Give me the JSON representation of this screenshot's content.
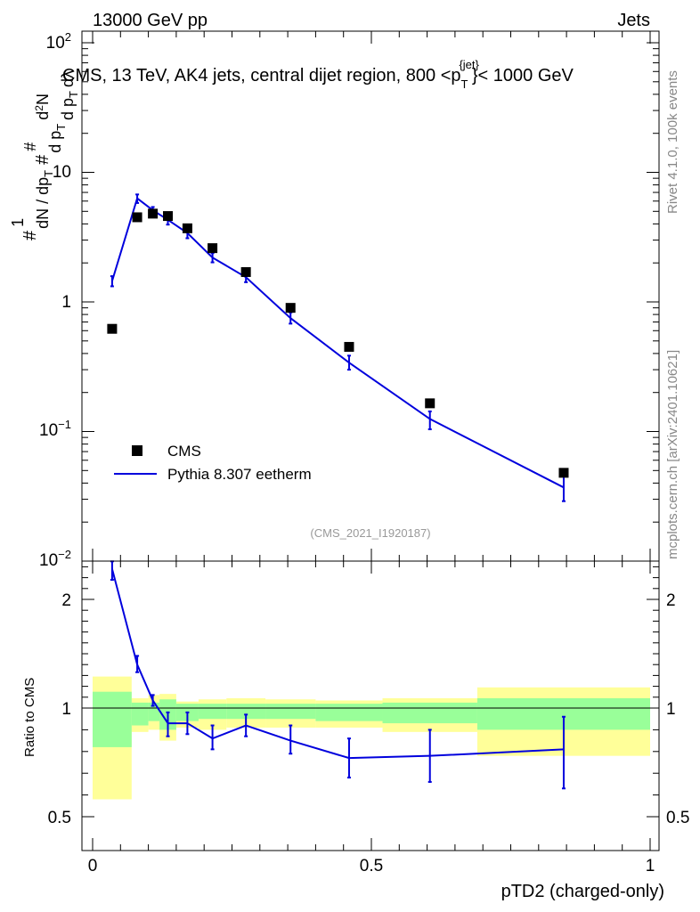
{
  "header": {
    "left": "13000 GeV pp",
    "right": "Jets"
  },
  "side_labels": {
    "rivet": "Rivet 4.1.0,  100k events",
    "source": "mcplots.cern.ch [arXiv:2401.10621]"
  },
  "colors": {
    "mc": "#0000dd",
    "band_inner": "#99ff99",
    "band_outer": "#ffff99",
    "data": "#000000"
  },
  "chart_data": [
    {
      "type": "scatter",
      "title": "CMS, 13 TeV, AK4 jets, central dijet region, 800 <p",
      "title_sup": "{jet}",
      "title_sub": "T",
      "title_end": "}< 1000 GeV",
      "analysis_id": "(CMS_2021_I1920187)",
      "ylabel": "1/dN/dpT # d2N/dpT dλ",
      "yscale": "log",
      "ylim": [
        0.01,
        120
      ],
      "ytick_labels": {
        "y1e-2": "10",
        "y1e-2exp": "−2",
        "y1e-1": "10",
        "y1e-1exp": "−1",
        "y1": "1",
        "y10": "10",
        "y1e2": "10",
        "y1e2exp": "2"
      },
      "legend": {
        "data": "CMS",
        "mc": "Pythia 8.307 eetherm",
        "position": "lower-left"
      },
      "series": [
        {
          "name": "CMS",
          "x": [
            0.035,
            0.08,
            0.108,
            0.135,
            0.17,
            0.215,
            0.275,
            0.355,
            0.46,
            0.605,
            0.845
          ],
          "values": [
            0.62,
            4.5,
            4.8,
            4.6,
            3.7,
            2.6,
            1.7,
            0.9,
            0.45,
            0.165,
            0.048
          ]
        },
        {
          "name": "Pythia 8.307 eetherm",
          "x": [
            0.035,
            0.08,
            0.108,
            0.135,
            0.17,
            0.215,
            0.275,
            0.355,
            0.46,
            0.605,
            0.845
          ],
          "values": [
            1.45,
            6.3,
            5.1,
            4.3,
            3.4,
            2.2,
            1.55,
            0.75,
            0.34,
            0.125,
            0.037
          ],
          "err_low": [
            1.32,
            5.8,
            4.75,
            3.95,
            3.1,
            2.02,
            1.42,
            0.68,
            0.3,
            0.104,
            0.029
          ],
          "err_high": [
            1.58,
            6.75,
            5.4,
            4.6,
            3.65,
            2.38,
            1.68,
            0.83,
            0.385,
            0.143,
            0.045
          ]
        }
      ]
    },
    {
      "type": "line",
      "ylabel": "Ratio to CMS",
      "xlabel": "pTD2 (charged-only)",
      "xlim": [
        0,
        1
      ],
      "ylim": [
        0.4,
        2.35
      ],
      "xtick_labels": [
        "0",
        "0.5",
        "1"
      ],
      "ytick_labels": [
        "0.5",
        "1",
        "2"
      ],
      "ytick_values": [
        0.5,
        1,
        2
      ],
      "bands": {
        "edges": [
          0,
          0.07,
          0.1,
          0.12,
          0.15,
          0.19,
          0.24,
          0.31,
          0.4,
          0.52,
          0.69,
          1.0
        ],
        "inner_low": [
          0.82,
          0.92,
          0.94,
          0.9,
          0.94,
          0.95,
          0.95,
          0.95,
          0.94,
          0.93,
          0.9
        ],
        "inner_high": [
          1.15,
          1.05,
          1.05,
          1.08,
          1.04,
          1.04,
          1.04,
          1.04,
          1.04,
          1.05,
          1.09
        ],
        "outer_low": [
          0.58,
          0.89,
          0.9,
          0.85,
          0.91,
          0.9,
          0.91,
          0.91,
          0.91,
          0.89,
          0.78
        ],
        "outer_high": [
          1.29,
          1.09,
          1.12,
          1.13,
          1.06,
          1.08,
          1.09,
          1.08,
          1.07,
          1.09,
          1.19
        ]
      },
      "series": [
        {
          "name": "Pythia / CMS",
          "x": [
            0.035,
            0.08,
            0.108,
            0.135,
            0.17,
            0.215,
            0.275,
            0.355,
            0.46,
            0.605,
            0.845
          ],
          "values": [
            2.28,
            1.4,
            1.07,
            0.93,
            0.93,
            0.86,
            0.92,
            0.85,
            0.77,
            0.78,
            0.81
          ],
          "err_low": [
            2.18,
            1.33,
            1.02,
            0.87,
            0.88,
            0.81,
            0.87,
            0.79,
            0.68,
            0.66,
            0.63
          ],
          "err_high": [
            2.35,
            1.48,
            1.12,
            0.98,
            0.98,
            0.92,
            0.97,
            0.92,
            0.86,
            0.9,
            0.96
          ]
        }
      ]
    }
  ]
}
